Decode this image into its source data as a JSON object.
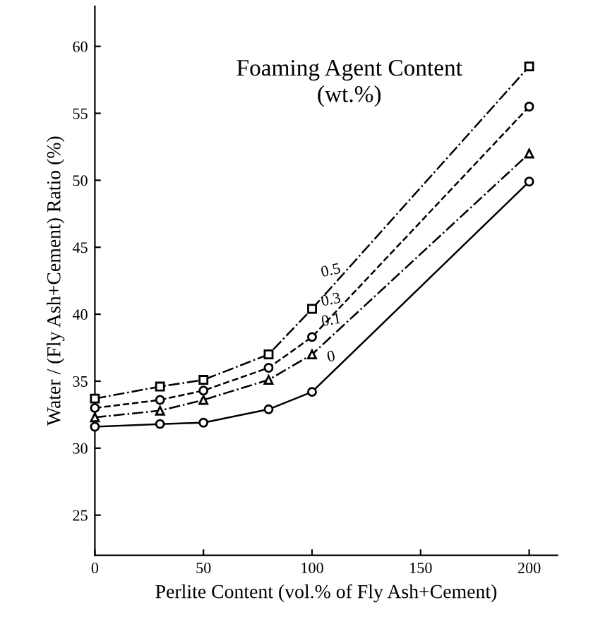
{
  "chart_data": {
    "type": "line",
    "xlabel": "Perlite Content (vol.% of Fly Ash+Cement)",
    "ylabel": "Water / (Fly Ash+Cement) Ratio (%)",
    "annotations": [
      "Foaming Agent Content\n(wt.%)"
    ],
    "x": [
      0,
      30,
      50,
      80,
      100,
      200
    ],
    "series": [
      {
        "name": "0.5",
        "color": "#000000",
        "marker": "square",
        "line_style": "dashdot",
        "values": [
          33.7,
          34.6,
          35.1,
          37.0,
          40.4,
          58.5
        ]
      },
      {
        "name": "0.3",
        "color": "#000000",
        "marker": "circle",
        "line_style": "dashed",
        "values": [
          33.0,
          33.6,
          34.3,
          36.0,
          38.3,
          55.5
        ]
      },
      {
        "name": "0.1",
        "color": "#000000",
        "marker": "triangle",
        "line_style": "dashdot",
        "values": [
          32.3,
          32.8,
          33.6,
          35.1,
          37.0,
          52.0
        ]
      },
      {
        "name": "0",
        "color": "#000000",
        "marker": "circle",
        "line_style": "solid",
        "values": [
          31.6,
          31.8,
          31.9,
          32.9,
          34.2,
          49.9
        ]
      }
    ],
    "xlim": [
      0,
      213
    ],
    "xticks": [
      0,
      50,
      100,
      150,
      200
    ],
    "ylim": [
      22,
      63
    ],
    "yticks": [
      25,
      30,
      35,
      40,
      45,
      50,
      55,
      60
    ],
    "grid": false
  }
}
